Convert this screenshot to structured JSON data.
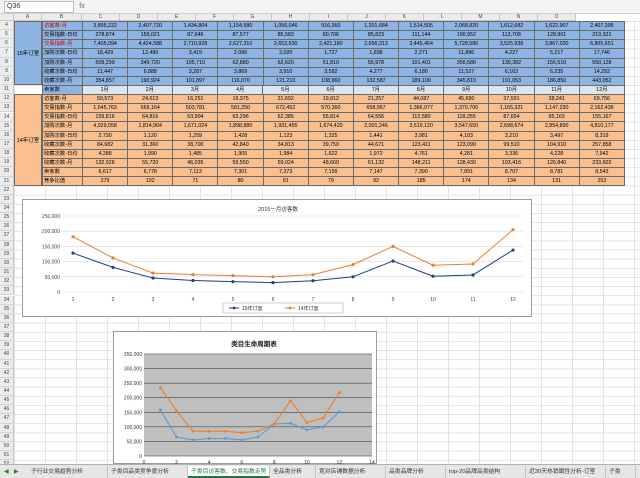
{
  "formula_bar": {
    "name_box": "Q36",
    "fx": "fx"
  },
  "columns": [
    "A",
    "B",
    "C",
    "D",
    "E",
    "F",
    "G",
    "H",
    "I",
    "J",
    "K",
    "L",
    "M",
    "N",
    "O"
  ],
  "rows": [
    "4",
    "5",
    "6",
    "7",
    "8",
    "9",
    "10",
    "11",
    "12",
    "13",
    "14",
    "15",
    "16",
    "17",
    "18",
    "19",
    "20",
    "21",
    "22",
    "23",
    "24",
    "25",
    "26",
    "27",
    "28",
    "29",
    "30",
    "31",
    "32",
    "33",
    "34",
    "35",
    "36",
    "37",
    "38",
    "39",
    "40",
    "41",
    "42",
    "43",
    "44",
    "45",
    "46",
    "47",
    "48",
    "49",
    "50",
    "51",
    "52",
    "53"
  ],
  "block15": {
    "group": "15年订室",
    "rows": [
      {
        "label": "访客数-月",
        "vals": [
          "3,895,222",
          "2,407,720",
          "1,434,804",
          "1,154,580",
          "1,056,046",
          "916,360",
          "1,201,684",
          "1,514,505",
          "2,068,820",
          "1,612,682",
          "1,622,907",
          "2,407,305"
        ],
        "red": true
      },
      {
        "label": "交易指数-日均",
        "vals": [
          "278,874",
          "159,021",
          "87,646",
          "87,577",
          "85,583",
          "80,706",
          "85,823",
          "111,144",
          "190,952",
          "113,708",
          "128,901",
          "219,321"
        ],
        "red": false
      },
      {
        "label": "交易指数-月",
        "vals": [
          "7,405,094",
          "4,424,588",
          "2,710,928",
          "2,627,310",
          "2,652,630",
          "2,421,180",
          "2,656,313",
          "3,445,464",
          "5,728,580",
          "3,525,938",
          "3,867,030",
          "6,805,651"
        ],
        "red": true
      },
      {
        "label": "加购次数-日均",
        "vals": [
          "18,429",
          "12,490",
          "3,419",
          "2,096",
          "2,020",
          "1,727",
          "1,838",
          "2,271",
          "11,886",
          "4,227",
          "5,217",
          "17,746"
        ],
        "red": false
      },
      {
        "label": "加购次数-月",
        "vals": [
          "509,299",
          "349,720",
          "105,710",
          "62,880",
          "62,620",
          "51,810",
          "56,978",
          "101,401",
          "356,580",
          "130,382",
          "156,510",
          "550,128"
        ],
        "red": false
      },
      {
        "label": "收藏次数-日均",
        "vals": [
          "11,447",
          "6,888",
          "3,287",
          "3,869",
          "3,910",
          "3,582",
          "4,277",
          "6,180",
          "11,527",
          "6,163",
          "6,235",
          "14,292"
        ],
        "red": false
      },
      {
        "label": "收藏次数-月",
        "vals": [
          "354,857",
          "190,924",
          "101,897",
          "116,070",
          "121,210",
          "108,960",
          "132,587",
          "189,100",
          "345,810",
          "191,053",
          "186,850",
          "443,052"
        ],
        "red": false
      },
      {
        "label": "卖家数",
        "vals": [
          "9,826",
          "10,499",
          "10,828",
          "11,101",
          "11,174",
          "11,356",
          "11,302",
          "11,668",
          "12,477",
          "13,539",
          "14,931",
          "18,998"
        ],
        "red": false
      },
      {
        "label": "竞争比值",
        "vals": [
          "395",
          "229",
          "135",
          "104",
          "95",
          "81",
          "106",
          "130",
          "247",
          "119",
          "113",
          "253"
        ],
        "red": false
      }
    ],
    "months": [
      "1月",
      "2月",
      "3月",
      "4月",
      "5月",
      "6月",
      "7月",
      "8月",
      "9月",
      "10月",
      "11月",
      "12月"
    ]
  },
  "block14": {
    "group": "14年订室",
    "rows": [
      {
        "label": "访客数-月",
        "vals": [
          "59,573",
          "24,613",
          "16,251",
          "19,375",
          "21,692",
          "19,812",
          "21,257",
          "44,087",
          "45,690",
          "37,591",
          "38,241",
          "69,756"
        ]
      },
      {
        "label": "交易指数-月",
        "vals": [
          "1,645,763",
          "669,164",
          "503,781",
          "581,250",
          "672,452",
          "570,360",
          "658,967",
          "1,366,077",
          "1,370,700",
          "1,165,321",
          "1,147,230",
          "2,162,436"
        ]
      },
      {
        "label": "交易指数-日均",
        "vals": [
          "159,816",
          "64,816",
          "53,904",
          "63,296",
          "62,385",
          "55,814",
          "64,556",
          "113,580",
          "118,255",
          "87,654",
          "95,163",
          "155,167"
        ]
      },
      {
        "label": "加购次数-月",
        "vals": [
          "4,929,058",
          "1,814,904",
          "1,671,024",
          "1,898,880",
          "1,931,455",
          "1,674,420",
          "2,001,246",
          "3,519,120",
          "3,547,650",
          "2,698,674",
          "2,854,890",
          "4,810,177"
        ]
      },
      {
        "label": "加购次数-日均",
        "vals": [
          "2,730",
          "1,120",
          "1,259",
          "1,428",
          "1,123",
          "1,325",
          "1,441",
          "3,981",
          "4,103",
          "3,210",
          "3,497",
          "8,319"
        ]
      },
      {
        "label": "收藏次数-月",
        "vals": [
          "84,682",
          "31,360",
          "38,700",
          "42,840",
          "34,813",
          "39,750",
          "44,671",
          "123,411",
          "123,090",
          "99,510",
          "104,910",
          "257,858"
        ]
      },
      {
        "label": "收藏次数-日均",
        "vals": [
          "4,288",
          "1,990",
          "1,485",
          "1,905",
          "1,984",
          "1,622",
          "1,972",
          "4,761",
          "4,281",
          "3,336",
          "4,228",
          "7,942"
        ]
      },
      {
        "label": "收藏次数-月",
        "vals": [
          "132,928",
          "55,720",
          "46,035",
          "59,550",
          "59,024",
          "48,660",
          "61,132",
          "148,211",
          "128,430",
          "103,416",
          "126,840",
          "233,602"
        ]
      },
      {
        "label": "卖家数",
        "vals": [
          "6,617",
          "6,778",
          "7,113",
          "7,301",
          "7,373",
          "7,199",
          "7,147",
          "7,390",
          "7,891",
          "8,707",
          "8,781",
          "8,543"
        ]
      },
      {
        "label": "竞争比值",
        "vals": [
          "279",
          "102",
          "71",
          "80",
          "91",
          "79",
          "92",
          "185",
          "174",
          "134",
          "131",
          "253"
        ]
      }
    ]
  },
  "chart1": {
    "title": "2015一月访客数",
    "ylabels": [
      "250,000",
      "200,000",
      "150,000",
      "100,000",
      "50,000",
      "0"
    ],
    "xlabels": [
      "1",
      "2",
      "3",
      "4",
      "5",
      "6",
      "7",
      "8",
      "9",
      "10",
      "11",
      "12"
    ],
    "legend": [
      "15年订室",
      "14年订室"
    ],
    "colors": [
      "#1f3f87",
      "#ed7d31"
    ]
  },
  "chart2": {
    "title": "类目生命周期表",
    "ylabels": [
      "350,000",
      "300,000",
      "250,000",
      "200,000",
      "150,000",
      "100,000",
      "50,000",
      "0"
    ],
    "xlabels": [
      "0",
      "2",
      "4",
      "6",
      "8",
      "10",
      "12",
      "14"
    ],
    "colors": [
      "#5b9bd5",
      "#ed7d31"
    ]
  },
  "chart_data": [
    {
      "type": "line",
      "title": "2015一月访客数",
      "x": [
        1,
        2,
        3,
        4,
        5,
        6,
        7,
        8,
        9,
        10,
        11,
        12
      ],
      "ylim": [
        0,
        250000
      ],
      "series": [
        {
          "name": "15年订室",
          "values": [
            128000,
            81000,
            46000,
            38000,
            34000,
            31000,
            37000,
            50000,
            102000,
            52000,
            56000,
            138000
          ]
        },
        {
          "name": "14年订室",
          "values": [
            182000,
            112000,
            62000,
            57000,
            54000,
            50000,
            57000,
            90000,
            150000,
            88000,
            92000,
            205000
          ]
        }
      ]
    },
    {
      "type": "line",
      "title": "类目生命周期表",
      "x": [
        1,
        2,
        3,
        4,
        5,
        6,
        7,
        8,
        9,
        10,
        11,
        12
      ],
      "ylim": [
        0,
        350000
      ],
      "series": [
        {
          "values": [
            158000,
            65000,
            55000,
            60000,
            60000,
            55000,
            65000,
            110000,
            112000,
            90000,
            100000,
            152000
          ]
        },
        {
          "values": [
            235000,
            155000,
            85000,
            85000,
            85000,
            80000,
            85000,
            110000,
            190000,
            115000,
            130000,
            218000
          ]
        }
      ]
    }
  ],
  "tabs": [
    "子行业交易趋势分析",
    "子类目品类竞争度分析",
    "子类目访客数、交易指数走势",
    "全品类分析",
    "竞对店铺数据分析",
    "品类品牌分析",
    "top-20品牌品类结构",
    "近30天热销属性分析-订室",
    "子类"
  ],
  "active_tab": 2,
  "tab_nav": [
    "◀",
    "▶"
  ]
}
